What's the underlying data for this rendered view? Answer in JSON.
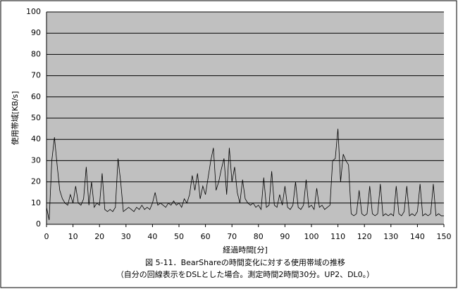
{
  "chart_data": {
    "type": "line",
    "title": "図 5-11．BearShareの時間変化に対する使用帯域の推移",
    "subtitle": "（自分の回線表示をDSLとした場合。測定時間2時間30分。UP2、DL0。）",
    "xlabel": "経過時間[分]",
    "ylabel": "使用帯域[KB/s]",
    "x": [
      0,
      1,
      2,
      3,
      4,
      5,
      6,
      7,
      8,
      9,
      10,
      11,
      12,
      13,
      14,
      15,
      16,
      17,
      18,
      19,
      20,
      21,
      22,
      23,
      24,
      25,
      26,
      27,
      28,
      29,
      30,
      31,
      32,
      33,
      34,
      35,
      36,
      37,
      38,
      39,
      40,
      41,
      42,
      43,
      44,
      45,
      46,
      47,
      48,
      49,
      50,
      51,
      52,
      53,
      54,
      55,
      56,
      57,
      58,
      59,
      60,
      61,
      62,
      63,
      64,
      65,
      66,
      67,
      68,
      69,
      70,
      71,
      72,
      73,
      74,
      75,
      76,
      77,
      78,
      79,
      80,
      81,
      82,
      83,
      84,
      85,
      86,
      87,
      88,
      89,
      90,
      91,
      92,
      93,
      94,
      95,
      96,
      97,
      98,
      99,
      100,
      101,
      102,
      103,
      104,
      105,
      106,
      107,
      108,
      109,
      110,
      111,
      112,
      113,
      114,
      115,
      116,
      117,
      118,
      119,
      120,
      121,
      122,
      123,
      124,
      125,
      126,
      127,
      128,
      129,
      130,
      131,
      132,
      133,
      134,
      135,
      136,
      137,
      138,
      139,
      140,
      141,
      142,
      143,
      144,
      145,
      146,
      147,
      148,
      149,
      150
    ],
    "series": [
      {
        "color": "#000000",
        "values": [
          8,
          2,
          30,
          41,
          28,
          16,
          12,
          10,
          9,
          14,
          10,
          18,
          10,
          9,
          12,
          27,
          9,
          20,
          8,
          10,
          9,
          24,
          7,
          6,
          7,
          6,
          8,
          31,
          20,
          6,
          7,
          8,
          7,
          6,
          8,
          7,
          9,
          7,
          8,
          7,
          10,
          15,
          9,
          10,
          9,
          8,
          10,
          9,
          11,
          9,
          10,
          8,
          12,
          10,
          14,
          23,
          16,
          24,
          12,
          18,
          14,
          22,
          30,
          36,
          16,
          20,
          26,
          31,
          14,
          36,
          20,
          27,
          15,
          10,
          21,
          12,
          10,
          9,
          10,
          8,
          9,
          7,
          22,
          8,
          9,
          25,
          9,
          8,
          14,
          9,
          18,
          8,
          7,
          9,
          20,
          8,
          7,
          9,
          21,
          8,
          9,
          7,
          17,
          8,
          9,
          7,
          8,
          9,
          30,
          31,
          45,
          20,
          33,
          30,
          28,
          5,
          4,
          5,
          16,
          5,
          4,
          5,
          18,
          5,
          4,
          5,
          19,
          4,
          5,
          4,
          5,
          4,
          18,
          5,
          4,
          6,
          18,
          4,
          5,
          4,
          6,
          19,
          4,
          5,
          4,
          5,
          19,
          4,
          5,
          4,
          4
        ]
      }
    ],
    "xlim": [
      0,
      150
    ],
    "xticks": [
      0,
      10,
      20,
      30,
      40,
      50,
      60,
      70,
      80,
      90,
      100,
      110,
      120,
      130,
      140,
      150
    ],
    "ylim": [
      0,
      100
    ],
    "yticks": [
      0,
      10,
      20,
      30,
      40,
      50,
      60,
      70,
      80,
      90,
      100
    ],
    "grid": true,
    "background": "#c0c0c0"
  }
}
